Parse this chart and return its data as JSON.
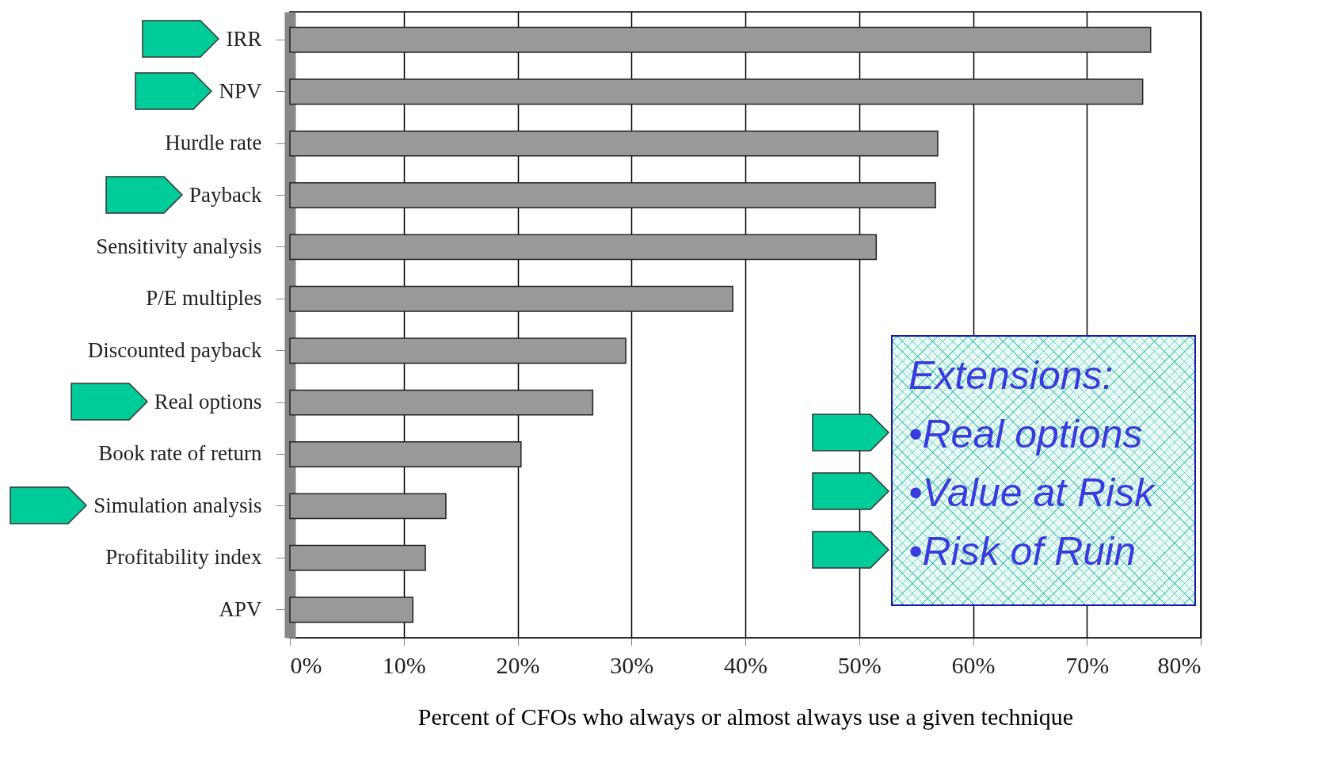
{
  "chart_data": {
    "type": "bar",
    "orientation": "horizontal",
    "xlabel": "Percent of CFOs who always or almost always use a given technique",
    "categories": [
      "IRR",
      "NPV",
      "Hurdle rate",
      "Payback",
      "Sensitivity analysis",
      "P/E multiples",
      "Discounted payback",
      "Real options",
      "Book rate of return",
      "Simulation analysis",
      "Profitability index",
      "APV"
    ],
    "values": [
      75.6,
      74.9,
      56.9,
      56.7,
      51.5,
      38.9,
      29.5,
      26.6,
      20.3,
      13.7,
      11.9,
      10.8
    ],
    "color": "#999999",
    "xlim": [
      0,
      80
    ],
    "xticks": [
      {
        "value": 0,
        "label": "0%"
      },
      {
        "value": 10,
        "label": "10%"
      },
      {
        "value": 20,
        "label": "20%"
      },
      {
        "value": 30,
        "label": "30%"
      },
      {
        "value": 40,
        "label": "40%"
      },
      {
        "value": 50,
        "label": "50%"
      },
      {
        "value": 60,
        "label": "60%"
      },
      {
        "value": 70,
        "label": "70%"
      },
      {
        "value": 80,
        "label": "80%"
      }
    ],
    "grid": "x",
    "annotations": [
      "Extensions:",
      "•Real options",
      "•Value at Risk",
      "•Risk of Ruin"
    ]
  }
}
